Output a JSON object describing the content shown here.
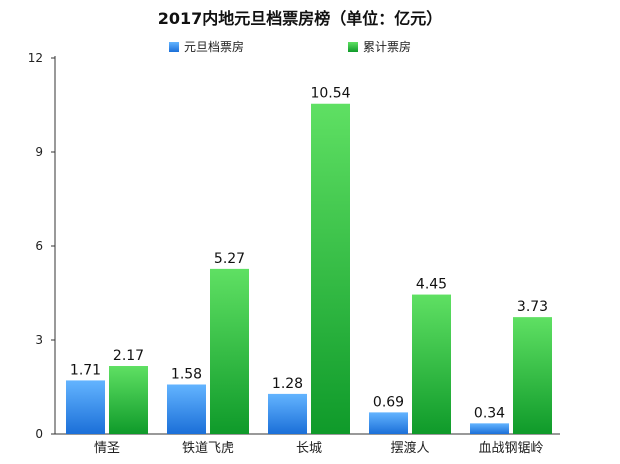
{
  "chart_data": {
    "type": "bar",
    "title": "2017内地元旦档票房榜（单位：亿元）",
    "categories": [
      "情圣",
      "铁道飞虎",
      "长城",
      "摆渡人",
      "血战钢锯岭"
    ],
    "series": [
      {
        "name": "元旦档票房",
        "values": [
          1.71,
          1.58,
          1.28,
          0.69,
          0.34
        ],
        "color": "#2f8ef0"
      },
      {
        "name": "累计票房",
        "values": [
          2.17,
          5.27,
          10.54,
          4.45,
          3.73
        ],
        "color": "#1fb536"
      }
    ],
    "value_labels": [
      [
        "1.71",
        "1.58",
        "1.28",
        "0.69",
        "0.34"
      ],
      [
        "2.17",
        "5.27",
        "10.54",
        "4.45",
        "3.73"
      ]
    ],
    "xlabel": "",
    "ylabel": "",
    "ylim": [
      0,
      12
    ],
    "yticks": [
      0,
      3,
      6,
      9,
      12
    ],
    "grid": false,
    "legend": "top-center"
  }
}
